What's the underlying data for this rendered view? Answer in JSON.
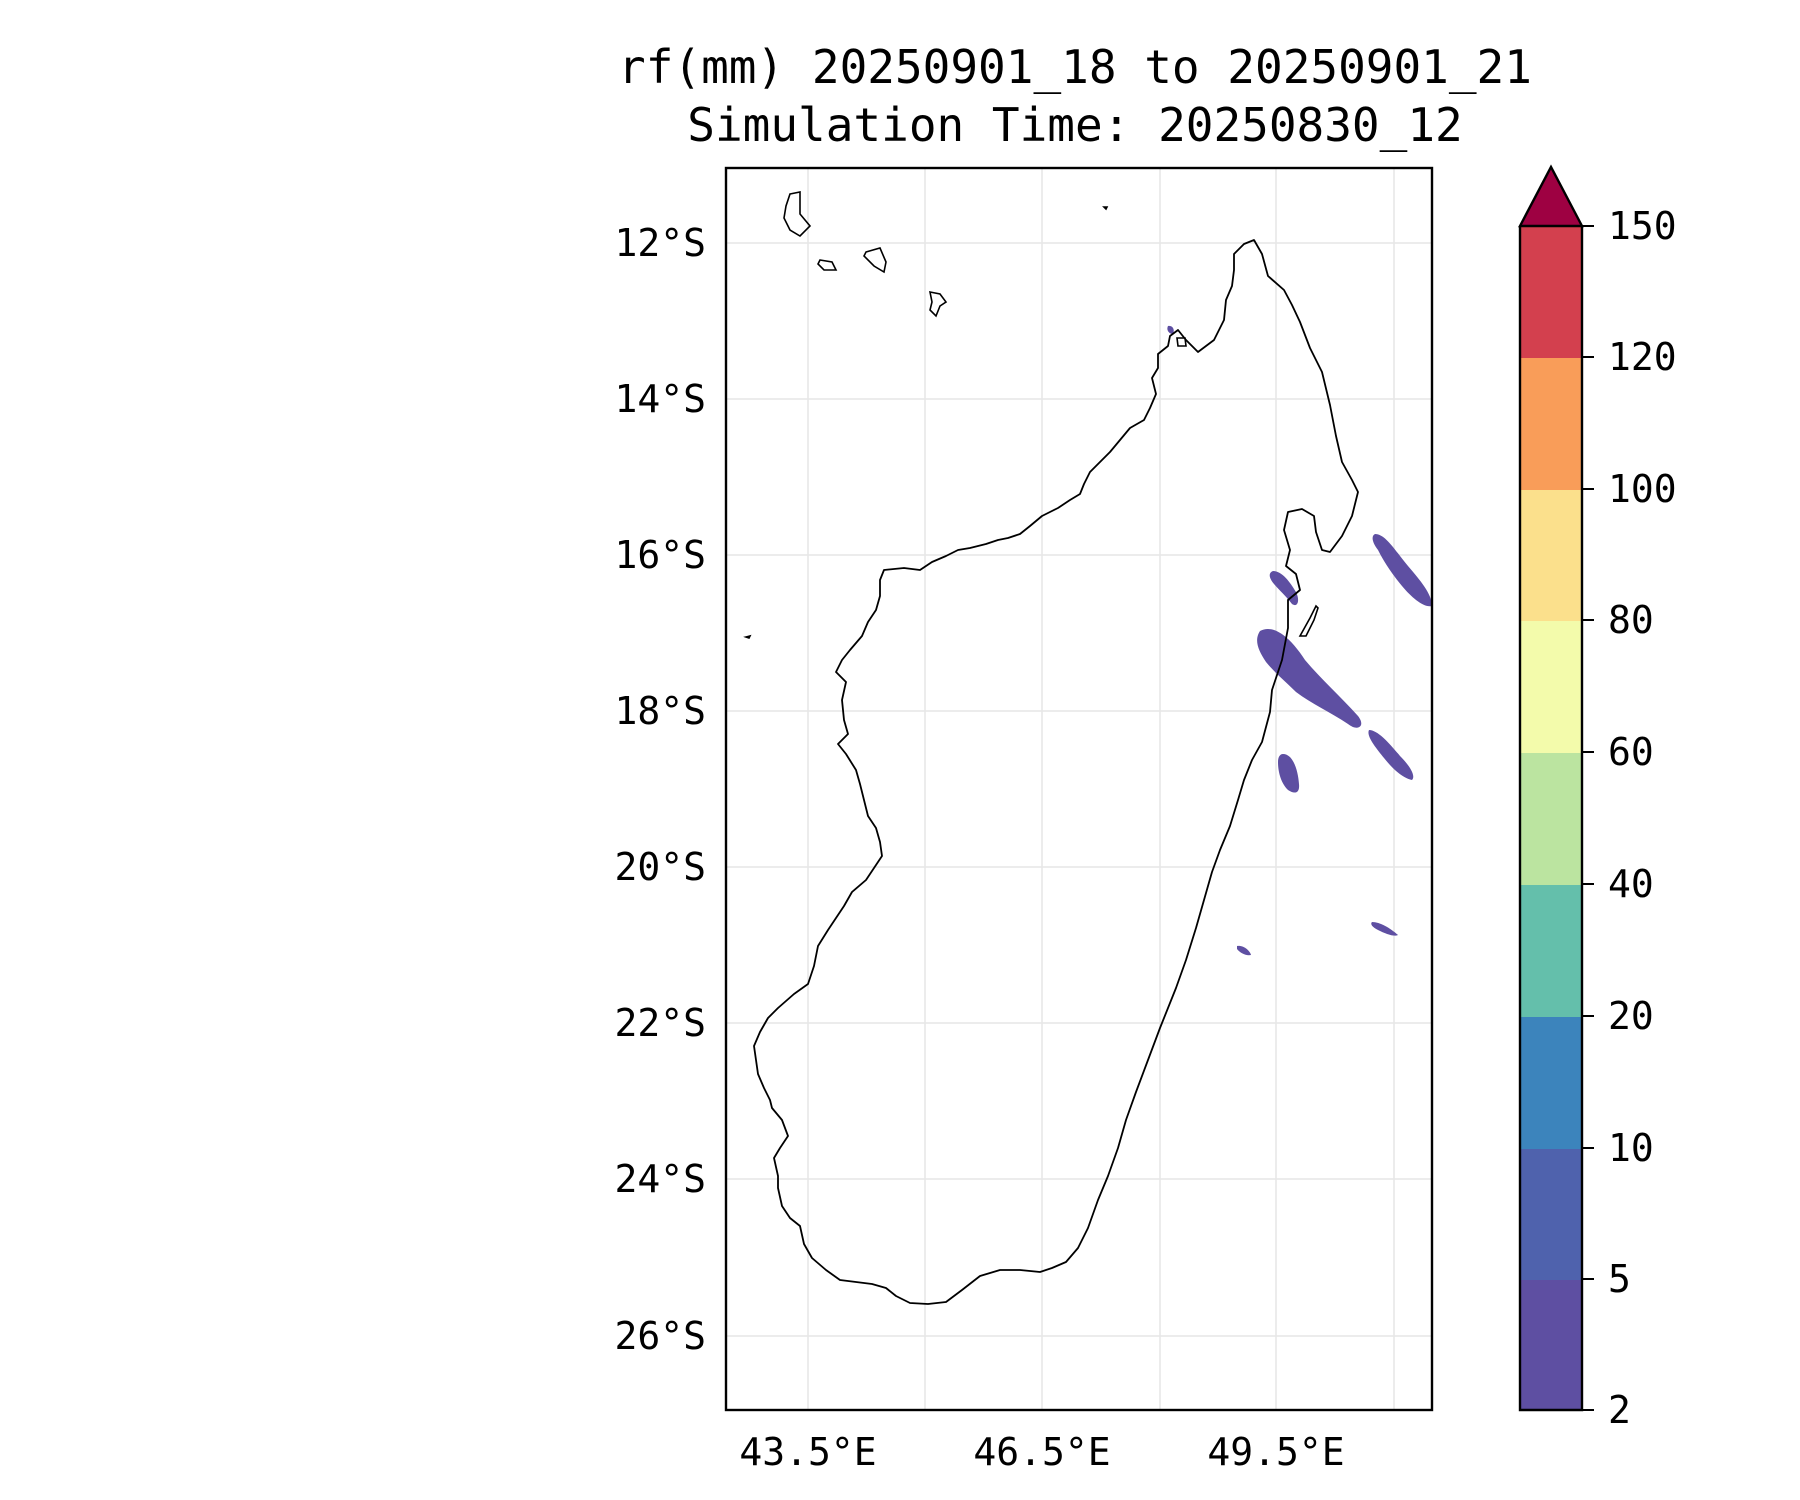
{
  "title_line1": "rf(mm) 20250901_18 to 20250901_21",
  "title_line2": "Simulation Time: 20250830_12",
  "map": {
    "lat_ticks": [
      "12°S",
      "14°S",
      "16°S",
      "18°S",
      "20°S",
      "22°S",
      "24°S",
      "26°S"
    ],
    "lon_ticks": [
      "43.5°E",
      "46.5°E",
      "49.5°E"
    ],
    "coastline_color": "#000000",
    "grid": true
  },
  "colorbar": {
    "ticks": [
      "2",
      "5",
      "10",
      "20",
      "40",
      "60",
      "80",
      "100",
      "120",
      "150"
    ],
    "colors": [
      "#5e4fa2",
      "#4f62ad",
      "#3c84bc",
      "#64bfab",
      "#bbe4a0",
      "#f3fbab",
      "#fbe08c",
      "#f99d59",
      "#d3404e",
      "#9e0142"
    ],
    "extend": "max"
  },
  "rain_areas_color": "#5e4fa2"
}
